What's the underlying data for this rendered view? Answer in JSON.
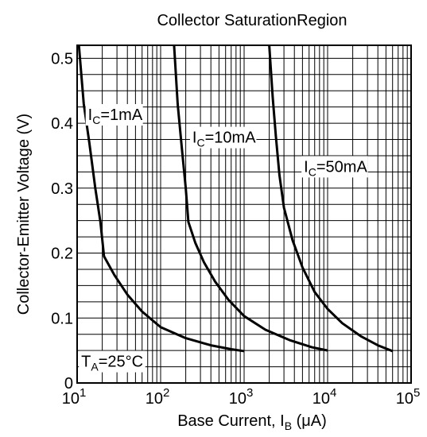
{
  "chart_data": {
    "type": "line",
    "title": "Collector SaturationRegion",
    "xlabel": {
      "main": "Base Current, I",
      "sub": "B",
      "unit": " (μA)"
    },
    "ylabel": "Collector-Emitter Voltage (V)",
    "x_scale": "log",
    "xlim": [
      10,
      100000
    ],
    "ylim": [
      0,
      0.52
    ],
    "grid": true,
    "x_tick_labels": [
      {
        "value": 10,
        "base": "10",
        "exp": "1"
      },
      {
        "value": 100,
        "base": "10",
        "exp": "2"
      },
      {
        "value": 1000,
        "base": "10",
        "exp": "3"
      },
      {
        "value": 10000,
        "base": "10",
        "exp": "4"
      },
      {
        "value": 100000,
        "base": "10",
        "exp": "5"
      }
    ],
    "y_ticks": [
      0,
      0.1,
      0.2,
      0.3,
      0.4,
      0.5
    ],
    "y_tick_labels": [
      "0",
      "0.1",
      "0.2",
      "0.3",
      "0.4",
      "0.5"
    ],
    "series": [
      {
        "name": "IC=1mA",
        "label": {
          "main": "I",
          "sub": "C",
          "rest": "=1mA"
        },
        "points": [
          [
            10.5,
            0.52
          ],
          [
            12,
            0.43
          ],
          [
            14,
            0.37
          ],
          [
            16.5,
            0.3
          ],
          [
            19,
            0.248
          ],
          [
            21,
            0.195
          ],
          [
            28,
            0.166
          ],
          [
            40,
            0.136
          ],
          [
            60,
            0.11
          ],
          [
            100,
            0.086
          ],
          [
            200,
            0.069
          ],
          [
            400,
            0.058
          ],
          [
            700,
            0.052
          ],
          [
            1000,
            0.049
          ]
        ]
      },
      {
        "name": "IC=10mA",
        "label": {
          "main": "I",
          "sub": "C",
          "rest": "=10mA"
        },
        "points": [
          [
            145,
            0.52
          ],
          [
            160,
            0.43
          ],
          [
            180,
            0.36
          ],
          [
            200,
            0.3
          ],
          [
            215,
            0.248
          ],
          [
            260,
            0.216
          ],
          [
            330,
            0.186
          ],
          [
            450,
            0.156
          ],
          [
            650,
            0.128
          ],
          [
            1000,
            0.103
          ],
          [
            1800,
            0.082
          ],
          [
            3500,
            0.066
          ],
          [
            6500,
            0.055
          ],
          [
            10000,
            0.05
          ]
        ]
      },
      {
        "name": "IC=50mA",
        "label": {
          "main": "I",
          "sub": "C",
          "rest": "=50mA"
        },
        "points": [
          [
            2000,
            0.52
          ],
          [
            2200,
            0.44
          ],
          [
            2400,
            0.38
          ],
          [
            2650,
            0.32
          ],
          [
            3000,
            0.27
          ],
          [
            3800,
            0.22
          ],
          [
            5000,
            0.178
          ],
          [
            7000,
            0.14
          ],
          [
            10000,
            0.114
          ],
          [
            15000,
            0.092
          ],
          [
            25000,
            0.072
          ],
          [
            40000,
            0.058
          ],
          [
            60000,
            0.049
          ]
        ]
      }
    ],
    "annotation": {
      "main": "T",
      "sub": "A",
      "rest": "=25°C"
    }
  }
}
